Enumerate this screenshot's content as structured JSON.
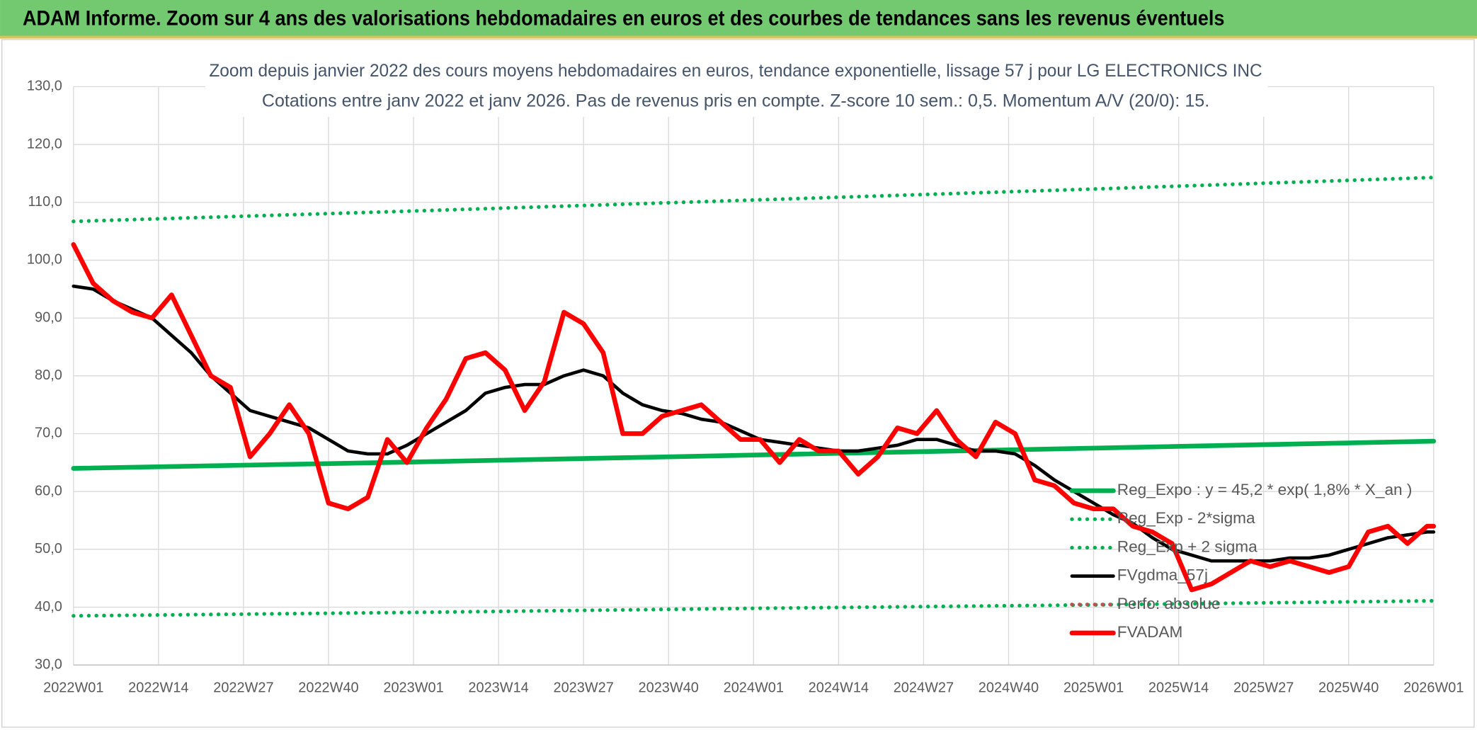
{
  "header": {
    "title": "ADAM Informe. Zoom sur 4 ans des valorisations hebdomadaires en euros et des courbes de tendances sans les revenus éventuels"
  },
  "chart_data": {
    "type": "line",
    "title": "Zoom depuis janvier 2022 des cours moyens hebdomadaires en euros, tendance exponentielle, lissage 57 j pour LG ELECTRONICS INC",
    "subtitle": "Cotations entre janv 2022 et janv 2026. Pas de revenus pris en compte. Z-score 10 sem.: 0,5. Momentum A/V (20/0): 15.",
    "xlim": [
      0,
      208
    ],
    "xticks": [
      {
        "value": 0,
        "label": "2022W01"
      },
      {
        "value": 13,
        "label": "2022W14"
      },
      {
        "value": 26,
        "label": "2022W27"
      },
      {
        "value": 39,
        "label": "2022W40"
      },
      {
        "value": 52,
        "label": "2023W01"
      },
      {
        "value": 65,
        "label": "2023W14"
      },
      {
        "value": 78,
        "label": "2023W27"
      },
      {
        "value": 91,
        "label": "2023W40"
      },
      {
        "value": 104,
        "label": "2024W01"
      },
      {
        "value": 117,
        "label": "2024W14"
      },
      {
        "value": 130,
        "label": "2024W27"
      },
      {
        "value": 143,
        "label": "2024W40"
      },
      {
        "value": 156,
        "label": "2025W01"
      },
      {
        "value": 169,
        "label": "2025W14"
      },
      {
        "value": 182,
        "label": "2025W27"
      },
      {
        "value": 195,
        "label": "2025W40"
      },
      {
        "value": 208,
        "label": "2026W01"
      }
    ],
    "ylim": [
      30,
      130
    ],
    "yticks": [
      {
        "value": 30,
        "label": "30,0"
      },
      {
        "value": 40,
        "label": "40,0"
      },
      {
        "value": 50,
        "label": "50,0"
      },
      {
        "value": 60,
        "label": "60,0"
      },
      {
        "value": 70,
        "label": "70,0"
      },
      {
        "value": 80,
        "label": "80,0"
      },
      {
        "value": 90,
        "label": "90,0"
      },
      {
        "value": 100,
        "label": "100,0"
      },
      {
        "value": 110,
        "label": "110,0"
      },
      {
        "value": 120,
        "label": "120,0"
      },
      {
        "value": 130,
        "label": "130,0"
      }
    ],
    "grid": true,
    "legend": "bottom-right",
    "series": [
      {
        "name": "Reg_Expo : y = 45,2 * exp( 1,8% *  X_an )",
        "color": "#00b050",
        "style": "solid",
        "width": 5,
        "x": [
          0,
          52,
          104,
          156,
          208
        ],
        "values": [
          64.0,
          65.1,
          66.3,
          67.5,
          68.7
        ]
      },
      {
        "name": "Reg_Exp - 2*sigma",
        "color": "#00b050",
        "style": "dotted",
        "width": 4,
        "x": [
          0,
          52,
          104,
          156,
          208
        ],
        "values": [
          38.5,
          39.1,
          39.8,
          40.4,
          41.1
        ]
      },
      {
        "name": "Reg_Exp + 2 sigma",
        "color": "#00b050",
        "style": "dotted",
        "width": 4,
        "x": [
          0,
          52,
          104,
          156,
          208
        ],
        "values": [
          106.7,
          108.5,
          110.4,
          112.3,
          114.3
        ]
      },
      {
        "name": "FVgdma_57j",
        "color": "#000000",
        "style": "solid",
        "width": 3.5,
        "x": [
          0,
          3,
          6,
          9,
          12,
          15,
          18,
          21,
          24,
          27,
          30,
          33,
          36,
          39,
          42,
          45,
          48,
          51,
          54,
          57,
          60,
          63,
          66,
          69,
          72,
          75,
          78,
          81,
          84,
          87,
          90,
          93,
          96,
          99,
          102,
          105,
          108,
          111,
          114,
          117,
          120,
          123,
          126,
          129,
          132,
          135,
          138,
          141,
          144,
          147,
          150,
          153,
          156,
          159,
          162,
          165,
          168,
          171,
          174,
          177,
          180,
          183,
          186,
          189,
          192,
          195,
          198,
          201,
          204,
          207,
          208
        ],
        "values": [
          95.5,
          95,
          93,
          91.5,
          90,
          87,
          84,
          80,
          77,
          74,
          73,
          72,
          71,
          69,
          67,
          66.5,
          66.5,
          68,
          70,
          72,
          74,
          77,
          78,
          78.5,
          78.5,
          80,
          81,
          80,
          77,
          75,
          74,
          73.5,
          72.5,
          72,
          70.5,
          69,
          68.5,
          68,
          67.5,
          67,
          67,
          67.5,
          68,
          69,
          69,
          68,
          67,
          67,
          66.5,
          64.5,
          62,
          60,
          58,
          56,
          54.5,
          52,
          50,
          49,
          48,
          48,
          48,
          48,
          48.5,
          48.5,
          49,
          50,
          51,
          52,
          52.5,
          53,
          53
        ]
      },
      {
        "name": "Perfo: absolue",
        "color": "#c0504d",
        "style": "dotted",
        "width": 4,
        "x": [],
        "values": []
      },
      {
        "name": "FVADAM",
        "color": "#ff0000",
        "style": "solid",
        "width": 5,
        "x": [
          0,
          3,
          6,
          9,
          12,
          15,
          18,
          21,
          24,
          27,
          30,
          33,
          36,
          39,
          42,
          45,
          48,
          51,
          54,
          57,
          60,
          63,
          66,
          69,
          72,
          75,
          78,
          81,
          84,
          87,
          90,
          93,
          96,
          99,
          102,
          105,
          108,
          111,
          114,
          117,
          120,
          123,
          126,
          129,
          132,
          135,
          138,
          141,
          144,
          147,
          150,
          153,
          156,
          159,
          162,
          165,
          168,
          171,
          174,
          177,
          180,
          183,
          186,
          189,
          192,
          195,
          198,
          201,
          204,
          207,
          208
        ],
        "values": [
          102.7,
          96,
          93,
          91,
          90,
          94,
          87,
          80,
          78,
          66,
          70,
          75,
          70,
          58,
          57,
          59,
          69,
          65,
          71,
          76,
          83,
          84,
          81,
          74,
          79,
          91,
          89,
          84,
          70,
          70,
          73,
          74,
          75,
          72,
          69,
          69,
          65,
          69,
          67,
          67,
          63,
          66,
          71,
          70,
          74,
          69,
          66,
          72,
          70,
          62,
          61,
          58,
          57,
          57,
          54,
          53,
          51,
          43,
          44,
          46,
          48,
          47,
          48,
          47,
          46,
          47,
          53,
          54,
          51,
          54,
          54
        ]
      }
    ]
  }
}
